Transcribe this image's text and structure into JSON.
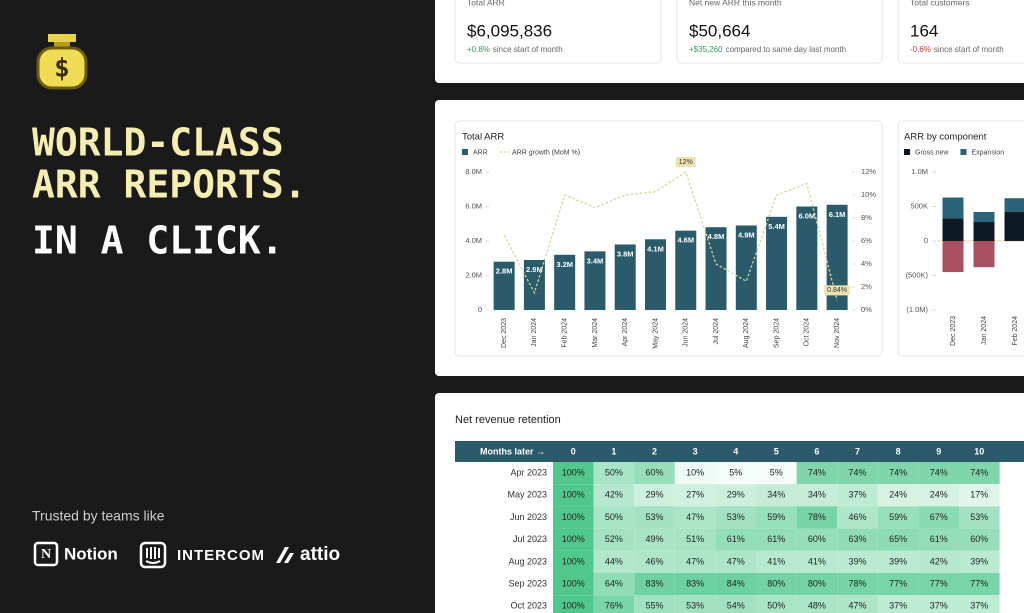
{
  "hero": {
    "title_lines": [
      "WORLD-CLASS",
      "ARR REPORTS."
    ],
    "tagline": "IN A CLICK.",
    "trusted": "Trusted by teams like",
    "logos": [
      "Notion",
      "INTERCOM",
      "attio"
    ]
  },
  "kpis": [
    {
      "label": "Total ARR",
      "value": "$6,095,836",
      "change": "+0.8%",
      "note": "since start of month",
      "change_color": "#2e9e5b"
    },
    {
      "label": "Net new ARR this month",
      "value": "$50,664",
      "change": "+$35,260",
      "note": "compared to same day last month",
      "change_color": "#2e9e5b"
    },
    {
      "label": "Total customers",
      "value": "164",
      "change": "-0.6%",
      "note": "since start of month",
      "change_color": "#d23c3c"
    }
  ],
  "arr_chart": {
    "type": "bar",
    "title": "Total ARR",
    "categories": [
      "Dec 2023",
      "Jan 2024",
      "Feb 2024",
      "Mar 2024",
      "Apr 2024",
      "May 2024",
      "Jun 2024",
      "Jul 2024",
      "Aug 2024",
      "Sep 2024",
      "Oct 2024",
      "Nov 2024"
    ],
    "series": [
      {
        "name": "ARR",
        "color": "#2b5a6b",
        "values": [
          2800000,
          2900000,
          3200000,
          3400000,
          3800000,
          4100000,
          4600000,
          4800000,
          4900000,
          5400000,
          6000000,
          6100000
        ],
        "value_labels": [
          "2.8M",
          "2.9M",
          "3.2M",
          "3.4M",
          "3.8M",
          "4.1M",
          "4.6M",
          "4.8M",
          "4.9M",
          "5.4M",
          "6.0M",
          "6.1M"
        ]
      },
      {
        "name": "ARR growth (MoM %)",
        "color": "#d6d59a",
        "axis": "y2",
        "values": [
          6.5,
          1.5,
          10,
          8.9,
          10,
          10.3,
          12,
          4,
          2.5,
          10,
          11,
          0.84
        ],
        "value_labels": [
          null,
          null,
          null,
          null,
          null,
          null,
          "12%",
          null,
          null,
          null,
          null,
          "0.84%"
        ]
      }
    ],
    "ylim": [
      0,
      8000000
    ],
    "yticks": [
      0,
      {
        "value": 2000000,
        "label": "2.0M"
      },
      {
        "value": 4000000,
        "label": "4.0M"
      },
      {
        "value": 6000000,
        "label": "6.0M"
      },
      {
        "value": 8000000,
        "label": "8.0M"
      }
    ],
    "y2lim": [
      0,
      12
    ],
    "y2ticks": [
      {
        "value": 0,
        "label": "0%"
      },
      {
        "value": 2,
        "label": "2%"
      },
      {
        "value": 4,
        "label": "4%"
      },
      {
        "value": 6,
        "label": "6%"
      },
      {
        "value": 8,
        "label": "8%"
      },
      {
        "value": 10,
        "label": "10%"
      },
      {
        "value": 12,
        "label": "12%"
      }
    ]
  },
  "component_chart": {
    "type": "stacked_bar",
    "title": "ARR by component",
    "categories": [
      "Dec 2023",
      "Jan 2024",
      "Feb 2024"
    ],
    "series": [
      {
        "name": "Gross new",
        "color": "#0f1b24",
        "values": [
          330000,
          275000,
          420000
        ]
      },
      {
        "name": "Expansion",
        "color": "#2b6378",
        "values": [
          300000,
          145000,
          200000
        ]
      },
      {
        "color": "#a8505f",
        "values": [
          -450000,
          -380000,
          null
        ]
      }
    ],
    "ylim": [
      -1000000,
      1000000
    ],
    "yticks": [
      {
        "value": 1000000,
        "label": "1.0M"
      },
      {
        "value": 500000,
        "label": "500K"
      },
      0,
      {
        "value": -500000,
        "label": "(500K)"
      },
      {
        "value": -1000000,
        "label": "(1.0M)"
      }
    ]
  },
  "retention": {
    "title": "Net revenue retention",
    "header": [
      "Months later →",
      0,
      1,
      2,
      3,
      4,
      5,
      6,
      7,
      8,
      9,
      10
    ],
    "rows": [
      {
        "cohort": "Apr 2023",
        "cells": [
          "100%",
          "50%",
          "60%",
          "10%",
          "5%",
          "5%",
          "74%",
          "74%",
          "74%",
          "74%",
          "74%"
        ]
      },
      {
        "cohort": "May 2023",
        "cells": [
          "100%",
          "42%",
          "29%",
          "27%",
          "29%",
          "34%",
          "34%",
          "37%",
          "24%",
          "24%",
          "17%"
        ]
      },
      {
        "cohort": "Jun 2023",
        "cells": [
          "100%",
          "50%",
          "53%",
          "47%",
          "53%",
          "59%",
          "78%",
          "46%",
          "59%",
          "67%",
          "53%"
        ]
      },
      {
        "cohort": "Jul 2023",
        "cells": [
          "100%",
          "52%",
          "49%",
          "51%",
          "61%",
          "61%",
          "60%",
          "63%",
          "65%",
          "61%",
          "60%"
        ]
      },
      {
        "cohort": "Aug 2023",
        "cells": [
          "100%",
          "44%",
          "46%",
          "47%",
          "47%",
          "41%",
          "41%",
          "39%",
          "39%",
          "42%",
          "39%"
        ]
      },
      {
        "cohort": "Sep 2023",
        "cells": [
          "100%",
          "64%",
          "83%",
          "83%",
          "84%",
          "80%",
          "80%",
          "78%",
          "77%",
          "77%",
          "77%"
        ]
      },
      {
        "cohort": "Oct 2023",
        "cells": [
          "100%",
          "76%",
          "55%",
          "53%",
          "54%",
          "50%",
          "48%",
          "47%",
          "37%",
          "37%",
          "37%"
        ]
      }
    ]
  }
}
